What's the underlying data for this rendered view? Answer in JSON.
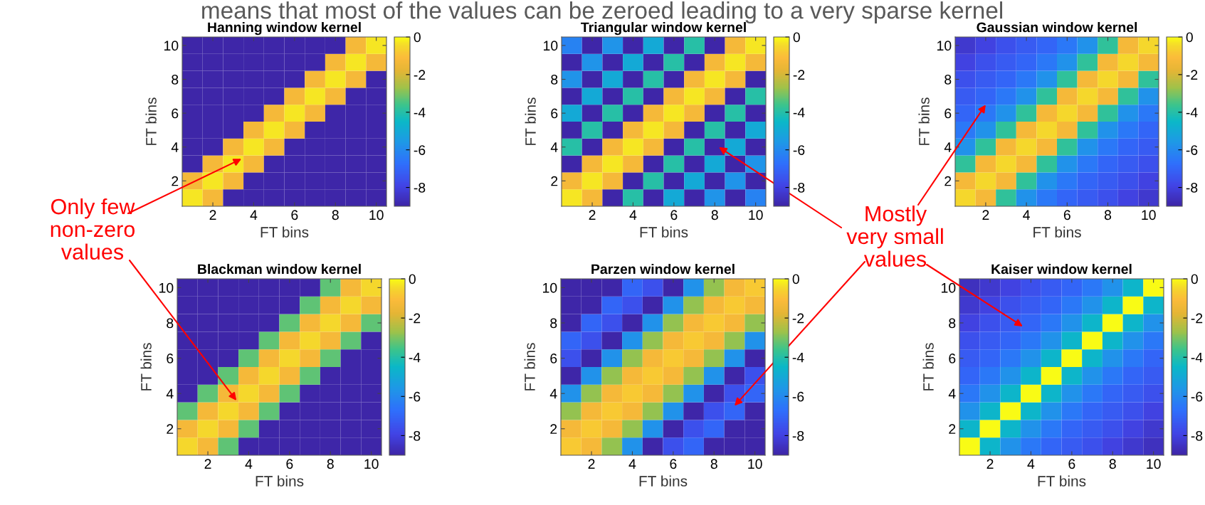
{
  "chart_data": [
    {
      "type": "heatmap",
      "title": "Hanning window kernel",
      "xlabel": "FT bins",
      "ylabel": "FT bins",
      "categories": [
        null,
        "2",
        null,
        "4",
        null,
        "6",
        null,
        "8",
        null,
        "10"
      ],
      "y_categories": [
        "10",
        null,
        "8",
        null,
        "6",
        null,
        "4",
        null,
        "2",
        null
      ],
      "cells": [
        [
          -9,
          -9,
          -9,
          -9,
          -9,
          -9,
          -9,
          -9,
          -1.3,
          -0.3
        ],
        [
          -9,
          -9,
          -9,
          -9,
          -9,
          -9,
          -9,
          -1.3,
          -0.3,
          -1.3
        ],
        [
          -9,
          -9,
          -9,
          -9,
          -9,
          -9,
          -1.3,
          -0.3,
          -1.3,
          -9
        ],
        [
          -9,
          -9,
          -9,
          -9,
          -9,
          -1.3,
          -0.3,
          -1.3,
          -9,
          -9
        ],
        [
          -9,
          -9,
          -9,
          -9,
          -1.3,
          -0.3,
          -1.3,
          -9,
          -9,
          -9
        ],
        [
          -9,
          -9,
          -9,
          -1.3,
          -0.3,
          -1.3,
          -9,
          -9,
          -9,
          -9
        ],
        [
          -9,
          -9,
          -1.3,
          -0.3,
          -1.3,
          -9,
          -9,
          -9,
          -9,
          -9
        ],
        [
          -9,
          -1.3,
          -0.3,
          -1.3,
          -9,
          -9,
          -9,
          -9,
          -9,
          -9
        ],
        [
          -1.3,
          -0.3,
          -1.3,
          -9,
          -9,
          -9,
          -9,
          -9,
          -9,
          -9
        ],
        [
          -0.3,
          -1.3,
          -9,
          -9,
          -9,
          -9,
          -9,
          -9,
          -9,
          -9
        ]
      ],
      "clim": [
        -9,
        0
      ],
      "cticks": [
        0,
        -2,
        -4,
        -6,
        -8
      ],
      "annotations": [
        "means that most of the values can be zeroed leading to a very sparse kernel",
        "Only few\nnon-zero\nvalues"
      ]
    },
    {
      "type": "heatmap",
      "title": "Triangular window kernel",
      "xlabel": "FT bins",
      "ylabel": "FT bins",
      "categories": [
        null,
        "2",
        null,
        "4",
        null,
        "6",
        null,
        "8",
        null,
        "10"
      ],
      "y_categories": [
        "10",
        null,
        "8",
        null,
        "6",
        null,
        "4",
        null,
        "2",
        null
      ],
      "cells": [
        [
          -6.2,
          -9,
          -5.7,
          -9,
          -5,
          -9,
          -4,
          -9,
          -1.3,
          -0.3
        ],
        [
          -9,
          -5.7,
          -9,
          -5,
          -9,
          -4,
          -9,
          -1.3,
          -0.3,
          -1.3
        ],
        [
          -5.7,
          -9,
          -5,
          -9,
          -4,
          -9,
          -1.3,
          -0.3,
          -1.3,
          -9
        ],
        [
          -9,
          -5,
          -9,
          -4,
          -9,
          -1.3,
          -0.3,
          -1.3,
          -9,
          -4
        ],
        [
          -5,
          -9,
          -4,
          -9,
          -1.3,
          -0.3,
          -1.3,
          -9,
          -4,
          -9
        ],
        [
          -9,
          -4,
          -9,
          -1.3,
          -0.3,
          -1.3,
          -9,
          -4,
          -9,
          -5
        ],
        [
          -4,
          -9,
          -1.3,
          -0.3,
          -1.3,
          -9,
          -4,
          -9,
          -5,
          -9
        ],
        [
          -9,
          -1.3,
          -0.3,
          -1.3,
          -9,
          -4,
          -9,
          -5,
          -9,
          -5.7
        ],
        [
          -1.3,
          -0.3,
          -1.3,
          -9,
          -4,
          -9,
          -5,
          -9,
          -5.7,
          -9
        ],
        [
          -0.3,
          -1.3,
          -9,
          -4,
          -9,
          -5,
          -9,
          -5.7,
          -9,
          -6.2
        ]
      ],
      "clim": [
        -9,
        0
      ],
      "cticks": [
        0,
        -2,
        -4,
        -6,
        -8
      ],
      "annotations": [
        "Mostly\nvery small\nvalues"
      ]
    },
    {
      "type": "heatmap",
      "title": "Gaussian window kernel",
      "xlabel": "FT bins",
      "ylabel": "FT bins",
      "categories": [
        null,
        "2",
        null,
        "4",
        null,
        "6",
        null,
        "8",
        null,
        "10"
      ],
      "y_categories": [
        "10",
        null,
        "8",
        null,
        "6",
        null,
        "4",
        null,
        "2",
        null
      ],
      "cells": [
        [
          -8.3,
          -8,
          -7.6,
          -7.3,
          -7,
          -6.5,
          -5.8,
          -3.8,
          -1.3,
          -0.5
        ],
        [
          -8,
          -7.6,
          -7.3,
          -7,
          -6.5,
          -5.8,
          -3.8,
          -1.3,
          -0.5,
          -1.3
        ],
        [
          -7.6,
          -7.3,
          -7,
          -6.5,
          -5.8,
          -3.8,
          -1.3,
          -0.5,
          -1.3,
          -3.8
        ],
        [
          -7.3,
          -7,
          -6.5,
          -5.8,
          -3.8,
          -1.3,
          -0.5,
          -1.3,
          -3.8,
          -5.8
        ],
        [
          -7,
          -6.5,
          -5.8,
          -3.8,
          -1.3,
          -0.5,
          -1.3,
          -3.8,
          -5.8,
          -6.5
        ],
        [
          -6.5,
          -5.8,
          -3.8,
          -1.3,
          -0.5,
          -1.3,
          -3.8,
          -5.8,
          -6.5,
          -7
        ],
        [
          -5.8,
          -3.8,
          -1.3,
          -0.5,
          -1.3,
          -3.8,
          -5.8,
          -6.5,
          -7,
          -7.3
        ],
        [
          -3.8,
          -1.3,
          -0.5,
          -1.3,
          -3.8,
          -5.8,
          -6.5,
          -7,
          -7.3,
          -7.6
        ],
        [
          -1.3,
          -0.5,
          -1.3,
          -3.8,
          -5.8,
          -6.5,
          -7,
          -7.3,
          -7.6,
          -8
        ],
        [
          -0.5,
          -1.3,
          -3.8,
          -5.8,
          -6.5,
          -7,
          -7.3,
          -7.6,
          -8,
          -8.3
        ]
      ],
      "clim": [
        -9,
        0
      ],
      "cticks": [
        0,
        -2,
        -4,
        -6,
        -8
      ]
    },
    {
      "type": "heatmap",
      "title": "Blackman window kernel",
      "xlabel": "FT bins",
      "ylabel": "FT bins",
      "categories": [
        null,
        "2",
        null,
        "4",
        null,
        "6",
        null,
        "8",
        null,
        "10"
      ],
      "y_categories": [
        "10",
        null,
        "8",
        null,
        "6",
        null,
        "4",
        null,
        "2",
        null
      ],
      "cells": [
        [
          -9,
          -9,
          -9,
          -9,
          -9,
          -9,
          -9,
          -3.3,
          -1.3,
          -0.5
        ],
        [
          -9,
          -9,
          -9,
          -9,
          -9,
          -9,
          -3.3,
          -1.3,
          -0.5,
          -1.3
        ],
        [
          -9,
          -9,
          -9,
          -9,
          -9,
          -3.3,
          -1.3,
          -0.5,
          -1.3,
          -3.3
        ],
        [
          -9,
          -9,
          -9,
          -9,
          -3.3,
          -1.3,
          -0.5,
          -1.3,
          -3.3,
          -9
        ],
        [
          -9,
          -9,
          -9,
          -3.3,
          -1.3,
          -0.5,
          -1.3,
          -3.3,
          -9,
          -9
        ],
        [
          -9,
          -9,
          -3.3,
          -1.3,
          -0.5,
          -1.3,
          -3.3,
          -9,
          -9,
          -9
        ],
        [
          -9,
          -3.3,
          -1.3,
          -0.5,
          -1.3,
          -3.3,
          -9,
          -9,
          -9,
          -9
        ],
        [
          -3.3,
          -1.3,
          -0.5,
          -1.3,
          -3.3,
          -9,
          -9,
          -9,
          -9,
          -9
        ],
        [
          -1.3,
          -0.5,
          -1.3,
          -3.3,
          -9,
          -9,
          -9,
          -9,
          -9,
          -9
        ],
        [
          -0.5,
          -1.3,
          -3.3,
          -9,
          -9,
          -9,
          -9,
          -9,
          -9,
          -9
        ]
      ],
      "clim": [
        -9,
        0
      ],
      "cticks": [
        0,
        -2,
        -4,
        -6,
        -8
      ]
    },
    {
      "type": "heatmap",
      "title": "Parzen window kernel",
      "xlabel": "FT bins",
      "ylabel": "FT bins",
      "categories": [
        null,
        "2",
        null,
        "4",
        null,
        "6",
        null,
        "8",
        null,
        "10"
      ],
      "y_categories": [
        "10",
        null,
        "8",
        null,
        "6",
        null,
        "4",
        null,
        "2",
        null
      ],
      "cells": [
        [
          -9,
          -9,
          -9,
          -7,
          -7.6,
          -9,
          -5.8,
          -2.8,
          -1.3,
          -0.8
        ],
        [
          -9,
          -9,
          -7,
          -7.6,
          -9,
          -5.8,
          -2.8,
          -1.3,
          -0.8,
          -1.3
        ],
        [
          -9,
          -7,
          -7.6,
          -9,
          -5.8,
          -2.8,
          -1.3,
          -0.8,
          -1.3,
          -2.8
        ],
        [
          -7,
          -7.6,
          -9,
          -5.8,
          -2.8,
          -1.3,
          -0.8,
          -1.3,
          -2.8,
          -5.8
        ],
        [
          -7.6,
          -9,
          -5.8,
          -2.8,
          -1.3,
          -0.8,
          -1.3,
          -2.8,
          -5.8,
          -9
        ],
        [
          -9,
          -5.8,
          -2.8,
          -1.3,
          -0.8,
          -1.3,
          -2.8,
          -5.8,
          -9,
          -7.6
        ],
        [
          -5.8,
          -2.8,
          -1.3,
          -0.8,
          -1.3,
          -2.8,
          -5.8,
          -9,
          -7.6,
          -7
        ],
        [
          -2.8,
          -1.3,
          -0.8,
          -1.3,
          -2.8,
          -5.8,
          -9,
          -7.6,
          -7,
          -9
        ],
        [
          -1.3,
          -0.8,
          -1.3,
          -2.8,
          -5.8,
          -9,
          -7.6,
          -7,
          -9,
          -9
        ],
        [
          -0.8,
          -1.3,
          -2.8,
          -5.8,
          -9,
          -7.6,
          -7,
          -9,
          -9,
          -9
        ]
      ],
      "clim": [
        -9,
        0
      ],
      "cticks": [
        0,
        -2,
        -4,
        -6,
        -8
      ]
    },
    {
      "type": "heatmap",
      "title": "Kaiser window kernel",
      "xlabel": "FT bins",
      "ylabel": "FT bins",
      "categories": [
        null,
        "2",
        null,
        "4",
        null,
        "6",
        null,
        "8",
        null,
        "10"
      ],
      "y_categories": [
        "10",
        null,
        "8",
        null,
        "6",
        null,
        "4",
        null,
        "2",
        null
      ],
      "cells": [
        [
          -8.6,
          -8.3,
          -8,
          -7.6,
          -7.3,
          -7,
          -6.5,
          -5.8,
          -4.6,
          0
        ],
        [
          -8.3,
          -8,
          -7.6,
          -7.3,
          -7,
          -6.5,
          -5.8,
          -4.6,
          0,
          -4.6
        ],
        [
          -8,
          -7.6,
          -7.3,
          -7,
          -6.5,
          -5.8,
          -4.6,
          0,
          -4.6,
          -5.8
        ],
        [
          -7.6,
          -7.3,
          -7,
          -6.5,
          -5.8,
          -4.6,
          0,
          -4.6,
          -5.8,
          -6.5
        ],
        [
          -7.3,
          -7,
          -6.5,
          -5.8,
          -4.6,
          0,
          -4.6,
          -5.8,
          -6.5,
          -7
        ],
        [
          -7,
          -6.5,
          -5.8,
          -4.6,
          0,
          -4.6,
          -5.8,
          -6.5,
          -7,
          -7.3
        ],
        [
          -6.5,
          -5.8,
          -4.6,
          0,
          -4.6,
          -5.8,
          -6.5,
          -7,
          -7.3,
          -7.6
        ],
        [
          -5.8,
          -4.6,
          0,
          -4.6,
          -5.8,
          -6.5,
          -7,
          -7.3,
          -7.6,
          -8
        ],
        [
          -4.6,
          0,
          -4.6,
          -5.8,
          -6.5,
          -7,
          -7.3,
          -7.6,
          -8,
          -8.3
        ],
        [
          0,
          -4.6,
          -5.8,
          -6.5,
          -7,
          -7.3,
          -7.6,
          -8,
          -8.3,
          -8.6
        ]
      ],
      "clim": [
        -9,
        0
      ],
      "cticks": [
        0,
        -2,
        -4,
        -6,
        -8
      ]
    }
  ]
}
